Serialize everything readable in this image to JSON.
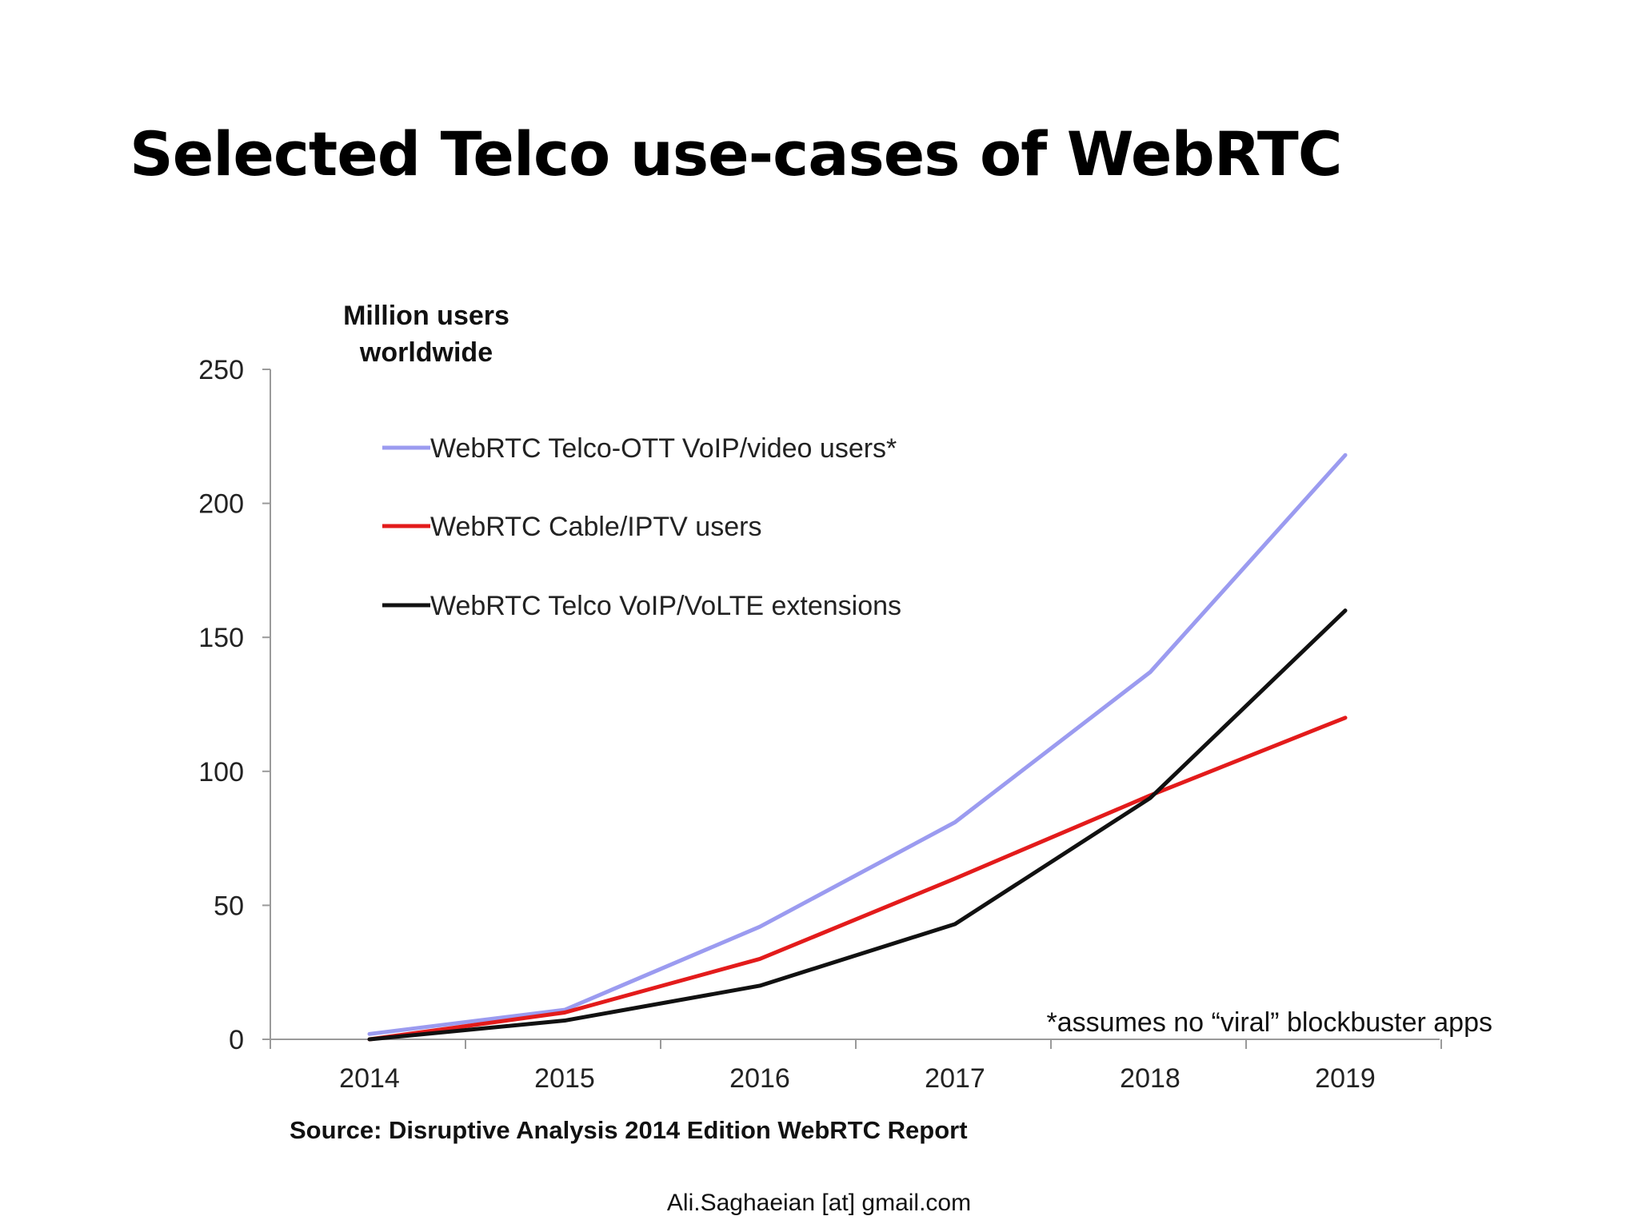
{
  "slide": {
    "title": "Selected Telco use-cases of WebRTC",
    "footer": "Ali.Saghaeian [at] gmail.com"
  },
  "chart_data": {
    "type": "line",
    "ylabel_lines": [
      "Million users",
      "worldwide"
    ],
    "x": [
      "2014",
      "2015",
      "2016",
      "2017",
      "2018",
      "2019"
    ],
    "ylim": [
      0,
      250
    ],
    "yticks": [
      0,
      50,
      100,
      150,
      200,
      250
    ],
    "grid": false,
    "legend_placement": "top-left",
    "series": [
      {
        "name": "WebRTC Telco-OTT VoIP/video users*",
        "color": "#9b9bf0",
        "values": [
          2,
          11,
          42,
          81,
          137,
          218
        ]
      },
      {
        "name": "WebRTC Cable/IPTV users",
        "color": "#e31b1b",
        "values": [
          0,
          10,
          30,
          60,
          91,
          120
        ]
      },
      {
        "name": "WebRTC Telco VoIP/VoLTE extensions",
        "color": "#111111",
        "values": [
          0,
          7,
          20,
          43,
          90,
          160
        ]
      }
    ],
    "annotation": "*assumes no “viral” blockbuster apps",
    "source": "Source: Disruptive Analysis 2014 Edition WebRTC Report"
  }
}
